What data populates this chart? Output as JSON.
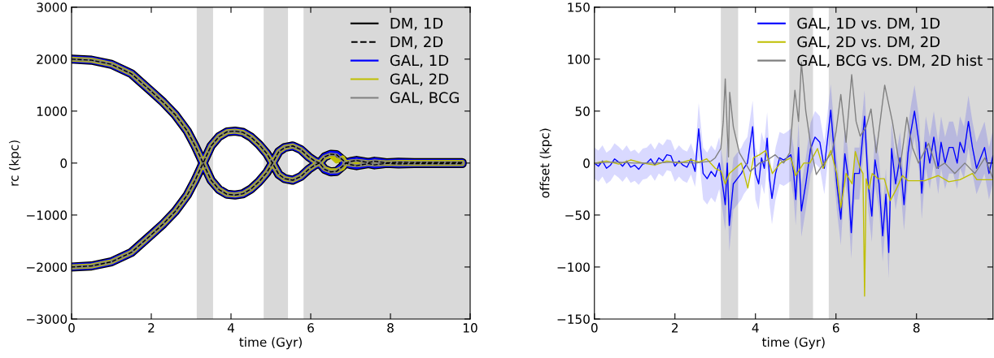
{
  "chart_data": [
    {
      "type": "line",
      "xlabel": "time (Gyr)",
      "ylabel": "rc (kpc)",
      "xlim": [
        0,
        10
      ],
      "ylim": [
        -3000,
        3000
      ],
      "xticks": [
        0,
        2,
        4,
        6,
        8,
        10
      ],
      "yticks": [
        -3000,
        -2000,
        -1000,
        0,
        1000,
        2000,
        3000
      ],
      "legend": "top right",
      "grid": false,
      "bands": [
        {
          "axis": "x",
          "from": 3.14,
          "to": 3.55,
          "color": "#d9d9d9"
        },
        {
          "axis": "x",
          "from": 4.82,
          "to": 5.43,
          "color": "#d9d9d9"
        },
        {
          "axis": "x",
          "from": 5.82,
          "to": 10,
          "color": "#d9d9d9"
        }
      ],
      "x": [
        0,
        0.5,
        1,
        1.5,
        2,
        2.3,
        2.6,
        2.9,
        3.1,
        3.3,
        3.5,
        3.7,
        3.9,
        4.1,
        4.3,
        4.5,
        4.7,
        4.9,
        5.04,
        5.2,
        5.35,
        5.55,
        5.75,
        5.95,
        6.1,
        6.22,
        6.35,
        6.5,
        6.65,
        6.8,
        6.88,
        7.0,
        7.15,
        7.3,
        7.45,
        7.6,
        7.75,
        7.9,
        8.2,
        8.6,
        9,
        9.4,
        9.8,
        9.8,
        9.4,
        9,
        8.6,
        8.2,
        7.9,
        7.75,
        7.6,
        7.45,
        7.3,
        7.15,
        7.0,
        6.88,
        6.8,
        6.65,
        6.5,
        6.35,
        6.22,
        6.1,
        5.95,
        5.75,
        5.55,
        5.35,
        5.2,
        5.04,
        4.9,
        4.7,
        4.5,
        4.3,
        4.1,
        3.9,
        3.7,
        3.5,
        3.3,
        3.1,
        2.9,
        2.6,
        2.3,
        2,
        1.5,
        1,
        0.5,
        0
      ],
      "series": [
        {
          "name": "DM, 1D",
          "color": "#000000",
          "line_style": "solid",
          "values": [
            2000,
            1980,
            1900,
            1720,
            1380,
            1170,
            930,
            620,
            330,
            0,
            330,
            510,
            600,
            615,
            590,
            500,
            360,
            180,
            0,
            220,
            300,
            330,
            260,
            120,
            40,
            0,
            120,
            170,
            160,
            60,
            0,
            30,
            50,
            30,
            10,
            35,
            20,
            5,
            15,
            10,
            10,
            10,
            10,
            -10,
            -10,
            -10,
            -10,
            -15,
            -5,
            -20,
            -35,
            -10,
            -30,
            -50,
            -30,
            0,
            -60,
            -160,
            -170,
            -120,
            0,
            -40,
            -120,
            -260,
            -330,
            -300,
            -220,
            0,
            -180,
            -360,
            -500,
            -590,
            -615,
            -600,
            -510,
            -330,
            0,
            -330,
            -620,
            -930,
            -1170,
            -1380,
            -1720,
            -1900,
            -1980,
            -2000
          ]
        },
        {
          "name": "DM, 2D",
          "color": "#000000",
          "line_style": "dashed",
          "values": [
            2000,
            1980,
            1900,
            1720,
            1380,
            1170,
            930,
            620,
            330,
            0,
            330,
            510,
            600,
            615,
            590,
            500,
            360,
            180,
            0,
            220,
            300,
            330,
            260,
            120,
            40,
            0,
            120,
            170,
            160,
            60,
            0,
            30,
            50,
            30,
            10,
            35,
            20,
            5,
            15,
            10,
            10,
            10,
            10,
            -10,
            -10,
            -10,
            -10,
            -15,
            -5,
            -20,
            -35,
            -10,
            -30,
            -50,
            -30,
            0,
            -60,
            -160,
            -170,
            -120,
            0,
            -40,
            -120,
            -260,
            -330,
            -300,
            -220,
            0,
            -180,
            -360,
            -500,
            -590,
            -615,
            -600,
            -510,
            -330,
            0,
            -330,
            -620,
            -930,
            -1170,
            -1380,
            -1720,
            -1900,
            -1980,
            -2000
          ]
        },
        {
          "name": "GAL, 1D",
          "color": "#0000ff",
          "line_style": "solid",
          "values": [
            2000,
            1980,
            1900,
            1720,
            1380,
            1170,
            930,
            620,
            330,
            0,
            330,
            510,
            600,
            615,
            590,
            500,
            360,
            180,
            0,
            220,
            300,
            330,
            260,
            120,
            40,
            0,
            120,
            170,
            160,
            60,
            0,
            30,
            50,
            30,
            10,
            35,
            20,
            5,
            15,
            10,
            10,
            10,
            10,
            -10,
            -10,
            -10,
            -10,
            -15,
            -5,
            -20,
            -35,
            -10,
            -30,
            -50,
            -30,
            0,
            -60,
            -160,
            -170,
            -120,
            0,
            -40,
            -120,
            -260,
            -330,
            -300,
            -220,
            0,
            -180,
            -360,
            -500,
            -590,
            -615,
            -600,
            -510,
            -330,
            0,
            -330,
            -620,
            -930,
            -1170,
            -1380,
            -1720,
            -1900,
            -1980,
            -2000
          ]
        },
        {
          "name": "GAL, 2D",
          "color": "#bfbf00",
          "line_style": "solid",
          "values": [
            2000,
            1980,
            1900,
            1720,
            1380,
            1170,
            930,
            620,
            330,
            0,
            330,
            510,
            600,
            615,
            590,
            500,
            360,
            180,
            0,
            220,
            300,
            330,
            260,
            120,
            40,
            0,
            110,
            150,
            40,
            100,
            0,
            20,
            30,
            20,
            5,
            20,
            10,
            5,
            10,
            10,
            10,
            10,
            10,
            -10,
            -10,
            -10,
            -10,
            -10,
            -5,
            -10,
            -20,
            -5,
            -20,
            -30,
            -20,
            0,
            -90,
            -150,
            -150,
            -110,
            0,
            -40,
            -120,
            -260,
            -330,
            -300,
            -220,
            0,
            -180,
            -360,
            -500,
            -590,
            -615,
            -600,
            -510,
            -330,
            0,
            -330,
            -620,
            -930,
            -1170,
            -1380,
            -1720,
            -1900,
            -1980,
            -2000
          ]
        },
        {
          "name": "GAL, BCG",
          "color": "#808080",
          "line_style": "solid",
          "values": [
            2000,
            1980,
            1900,
            1720,
            1380,
            1170,
            930,
            620,
            330,
            0,
            330,
            510,
            600,
            615,
            590,
            500,
            360,
            180,
            0,
            220,
            300,
            330,
            260,
            120,
            40,
            0,
            120,
            170,
            160,
            60,
            0,
            30,
            50,
            30,
            10,
            35,
            20,
            5,
            15,
            10,
            10,
            10,
            10,
            -10,
            -10,
            -10,
            -10,
            -15,
            -5,
            -20,
            -35,
            -10,
            -30,
            -50,
            -30,
            0,
            -60,
            -160,
            -170,
            -120,
            0,
            -40,
            -120,
            -260,
            -330,
            -300,
            -220,
            0,
            -180,
            -360,
            -500,
            -590,
            -615,
            -600,
            -510,
            -330,
            0,
            -330,
            -620,
            -930,
            -1170,
            -1380,
            -1720,
            -1900,
            -1980,
            -2000
          ]
        }
      ]
    },
    {
      "type": "line",
      "xlabel": "time (Gyr)",
      "ylabel": "offset (kpc)",
      "xlim": [
        0,
        9.9
      ],
      "ylim": [
        -150,
        150
      ],
      "xticks": [
        0,
        2,
        4,
        6,
        8
      ],
      "yticks": [
        -150,
        -100,
        -50,
        0,
        50,
        100,
        150
      ],
      "legend": "top right",
      "grid": false,
      "bands": [
        {
          "axis": "x",
          "from": 3.14,
          "to": 3.57,
          "color": "#d9d9d9"
        },
        {
          "axis": "x",
          "from": 4.84,
          "to": 5.43,
          "color": "#d9d9d9"
        },
        {
          "axis": "x",
          "from": 5.82,
          "to": 9.9,
          "color": "#d9d9d9"
        }
      ],
      "series": [
        {
          "name": "GAL, 1D vs. DM, 1D",
          "color": "#0000ff",
          "x": [
            0,
            0.1,
            0.2,
            0.3,
            0.4,
            0.5,
            0.6,
            0.7,
            0.8,
            0.9,
            1.0,
            1.1,
            1.2,
            1.3,
            1.4,
            1.5,
            1.6,
            1.7,
            1.8,
            1.9,
            2.0,
            2.1,
            2.2,
            2.3,
            2.4,
            2.5,
            2.59,
            2.7,
            2.8,
            2.9,
            3.0,
            3.1,
            3.18,
            3.25,
            3.3,
            3.35,
            3.45,
            3.55,
            3.65,
            3.71,
            3.8,
            3.93,
            4.0,
            4.08,
            4.15,
            4.22,
            4.29,
            4.35,
            4.41,
            4.5,
            4.6,
            4.7,
            4.78,
            4.88,
            4.95,
            5.0,
            5.07,
            5.14,
            5.25,
            5.37,
            5.48,
            5.6,
            5.71,
            5.87,
            6.02,
            6.12,
            6.22,
            6.29,
            6.38,
            6.46,
            6.58,
            6.71,
            6.8,
            6.89,
            6.97,
            7.07,
            7.16,
            7.24,
            7.31,
            7.38,
            7.48,
            7.59,
            7.69,
            7.79,
            7.86,
            7.95,
            8.06,
            8.13,
            8.23,
            8.33,
            8.43,
            8.54,
            8.61,
            8.71,
            8.81,
            8.91,
            9.01,
            9.08,
            9.18,
            9.29,
            9.39,
            9.49,
            9.59,
            9.69,
            9.8,
            9.9
          ],
          "values": [
            0,
            -3,
            2,
            -5,
            -2,
            4,
            1,
            -3,
            2,
            -4,
            -2,
            -6,
            -1,
            0,
            4,
            -2,
            5,
            2,
            8,
            7,
            -3,
            2,
            -2,
            -4,
            4,
            -8,
            33,
            -10,
            -15,
            -8,
            -13,
            0,
            -20,
            -40,
            0,
            -60,
            -20,
            -15,
            -10,
            -5,
            0,
            35,
            -10,
            -20,
            5,
            -5,
            24,
            -15,
            -34,
            -10,
            5,
            3,
            5,
            8,
            -10,
            -35,
            15,
            -46,
            -20,
            14,
            25,
            20,
            -5,
            51,
            -20,
            -54,
            9,
            -10,
            -67,
            -10,
            -10,
            45,
            -20,
            -51,
            3,
            -20,
            -70,
            -30,
            -86,
            14,
            -20,
            5,
            -40,
            10,
            30,
            50,
            20,
            -29,
            20,
            0,
            25,
            -5,
            20,
            0,
            15,
            15,
            0,
            20,
            10,
            40,
            15,
            -5,
            5,
            15,
            -10,
            7
          ],
          "lower": [
            -15,
            -18,
            -13,
            -20,
            -17,
            -11,
            -14,
            -18,
            -13,
            -19,
            -17,
            -21,
            -16,
            -15,
            -11,
            -17,
            -10,
            -13,
            -7,
            -8,
            -18,
            -13,
            -17,
            -19,
            -11,
            -23,
            8,
            -35,
            -40,
            -33,
            -38,
            -25,
            -45,
            -65,
            -25,
            -85,
            -45,
            -40,
            -35,
            -30,
            -25,
            10,
            -35,
            -45,
            -20,
            -30,
            -1,
            -40,
            -59,
            -35,
            -20,
            -22,
            -20,
            -17,
            -35,
            -60,
            -10,
            -71,
            -45,
            -11,
            0,
            -5,
            -30,
            26,
            -45,
            -79,
            -16,
            -35,
            -92,
            -35,
            -35,
            20,
            -45,
            -76,
            -22,
            -45,
            -95,
            -55,
            -111,
            -11,
            -45,
            -20,
            -65,
            -15,
            5,
            25,
            -5,
            -54,
            -5,
            -25,
            0,
            -30,
            -5,
            -25,
            -10,
            -10,
            -25,
            -5,
            -15,
            15,
            -10,
            -30,
            -20,
            -10,
            -35,
            -18
          ],
          "upper": [
            15,
            12,
            17,
            10,
            13,
            19,
            16,
            12,
            17,
            11,
            13,
            9,
            14,
            15,
            19,
            13,
            20,
            17,
            23,
            22,
            12,
            17,
            13,
            11,
            19,
            7,
            58,
            15,
            10,
            17,
            12,
            25,
            5,
            -15,
            25,
            -35,
            5,
            10,
            15,
            20,
            25,
            60,
            15,
            5,
            30,
            20,
            49,
            10,
            -9,
            15,
            30,
            28,
            30,
            33,
            15,
            -10,
            40,
            -21,
            5,
            39,
            50,
            45,
            20,
            76,
            5,
            -29,
            34,
            15,
            -42,
            15,
            15,
            70,
            5,
            -26,
            28,
            5,
            -45,
            -5,
            -61,
            39,
            5,
            30,
            -15,
            35,
            55,
            75,
            45,
            -4,
            45,
            25,
            50,
            20,
            45,
            25,
            40,
            40,
            25,
            45,
            35,
            65,
            40,
            20,
            30,
            40,
            15,
            32
          ]
        },
        {
          "name": "GAL, 2D vs. DM, 2D",
          "color": "#bfbf00",
          "x": [
            0,
            0.3,
            0.6,
            0.9,
            1.2,
            1.5,
            1.8,
            2.1,
            2.4,
            2.6,
            2.79,
            3.0,
            3.15,
            3.25,
            3.35,
            3.5,
            3.65,
            3.81,
            3.95,
            4.1,
            4.25,
            4.42,
            4.62,
            4.88,
            5.0,
            5.2,
            5.35,
            5.54,
            5.68,
            5.87,
            6.02,
            6.12,
            6.25,
            6.4,
            6.48,
            6.6,
            6.67,
            6.71,
            6.75,
            6.82,
            6.9,
            7.04,
            7.2,
            7.35,
            7.5,
            7.65,
            7.79,
            8.0,
            8.2,
            8.54,
            8.8,
            9.08,
            9.39,
            9.5,
            9.9
          ],
          "values": [
            0,
            2,
            -1,
            3,
            0,
            -2,
            2,
            0,
            3,
            1,
            4,
            -5,
            -8,
            -20,
            -10,
            -5,
            0,
            -24,
            5,
            8,
            12,
            -10,
            0,
            5,
            -12,
            0,
            0,
            14,
            -5,
            12,
            -10,
            -43,
            -10,
            -20,
            11,
            -5,
            -10,
            -128,
            -15,
            -25,
            -10,
            -15,
            -15,
            -36,
            -25,
            -12,
            -17,
            -17,
            -17,
            -12,
            -18,
            -16,
            -10,
            -16,
            -16
          ]
        },
        {
          "name": "GAL, BCG vs. DM, 2D hist",
          "color": "#808080",
          "x": [
            0,
            0.5,
            1,
            1.5,
            2,
            2.5,
            2.9,
            3.0,
            3.14,
            3.2,
            3.25,
            3.3,
            3.33,
            3.36,
            3.45,
            3.6,
            3.87,
            4.1,
            4.3,
            4.49,
            4.7,
            4.85,
            4.98,
            5.07,
            5.14,
            5.25,
            5.4,
            5.51,
            5.7,
            5.9,
            6.0,
            6.12,
            6.25,
            6.39,
            6.5,
            6.6,
            6.75,
            6.87,
            7.0,
            7.21,
            7.4,
            7.59,
            7.76,
            7.9,
            8.05,
            8.3,
            8.5,
            8.7,
            8.95,
            9.2,
            9.45,
            9.7,
            9.9
          ],
          "values": [
            0,
            1,
            0,
            0,
            1,
            0,
            2,
            5,
            14,
            40,
            81,
            30,
            6,
            68,
            35,
            10,
            -8,
            0,
            3,
            8,
            0,
            10,
            70,
            40,
            97,
            50,
            10,
            -11,
            0,
            10,
            30,
            66,
            20,
            85,
            40,
            26,
            35,
            52,
            10,
            75,
            40,
            -5,
            44,
            15,
            0,
            19,
            -5,
            0,
            -10,
            0,
            -10,
            5,
            -15
          ]
        }
      ]
    }
  ]
}
